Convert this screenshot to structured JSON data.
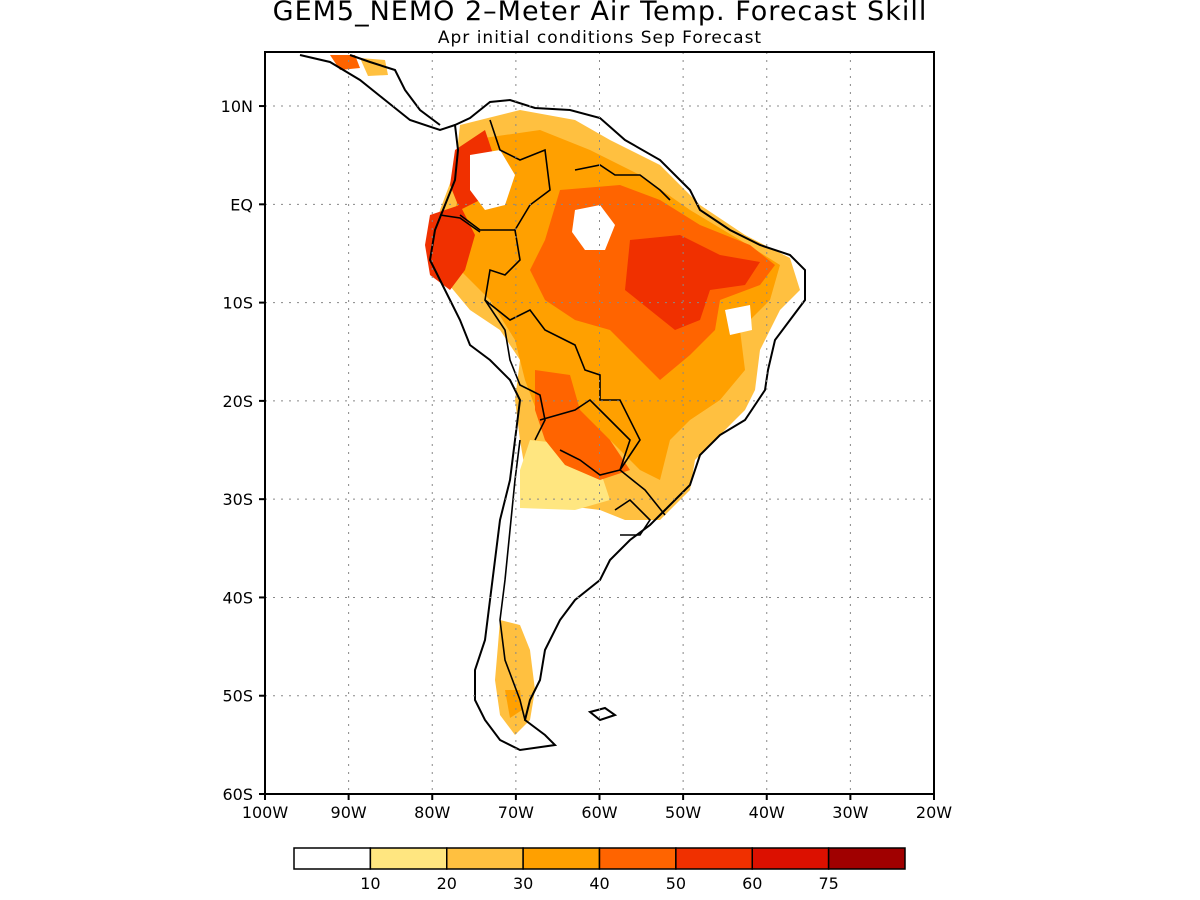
{
  "title": "GEM5_NEMO 2–Meter Air Temp. Forecast Skill",
  "subtitle": "Apr initial conditions  Sep Forecast",
  "map": {
    "lon_range": [
      -100,
      -20
    ],
    "lat_range": [
      -60,
      15.5
    ],
    "lat_labels": [
      "10N",
      "EQ",
      "10S",
      "20S",
      "30S",
      "40S",
      "50S",
      "60S"
    ],
    "lon_labels": [
      "100W",
      "90W",
      "80W",
      "70W",
      "60W",
      "50W",
      "40W",
      "30W",
      "20W"
    ],
    "grid": true
  },
  "colorbar": {
    "ticks": [
      "10",
      "20",
      "30",
      "40",
      "50",
      "60",
      "75"
    ],
    "colors": [
      "#ffffff",
      "#ffe680",
      "#ffc040",
      "#ffa000",
      "#ff6400",
      "#f03000",
      "#dc1000",
      "#a00000"
    ]
  }
}
